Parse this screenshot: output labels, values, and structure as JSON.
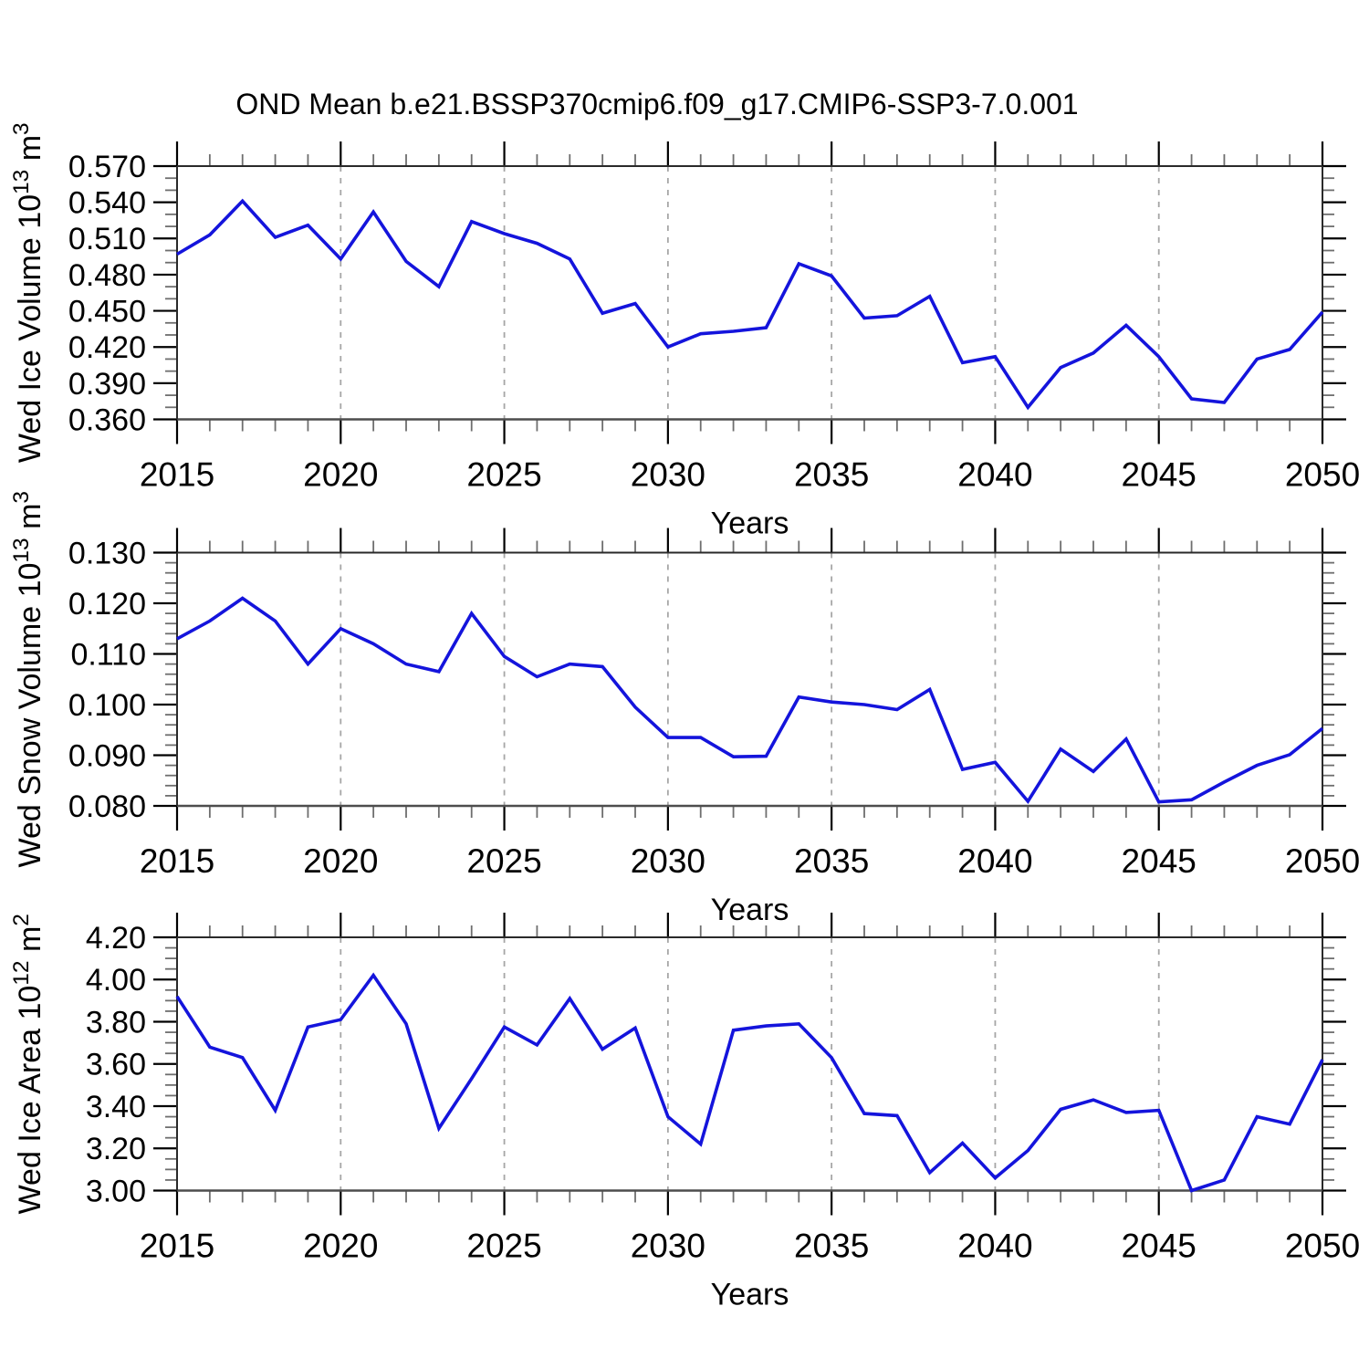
{
  "title": "OND Mean b.e21.BSSP370cmip6.f09_g17.CMIP6-SSP3-7.0.001",
  "colors": {
    "line": "#1414DC",
    "grid_dashed": "#A6A6A6",
    "axis": "#2A2A2A",
    "major_tick": "#000000",
    "minor_tick": "#6E6E6E",
    "text": "#000000",
    "background": "#FFFFFF"
  },
  "chart_data": [
    {
      "type": "line",
      "panel": 1,
      "x": [
        2015,
        2016,
        2017,
        2018,
        2019,
        2020,
        2021,
        2022,
        2023,
        2024,
        2025,
        2026,
        2027,
        2028,
        2029,
        2030,
        2031,
        2032,
        2033,
        2034,
        2035,
        2036,
        2037,
        2038,
        2039,
        2040,
        2041,
        2042,
        2043,
        2044,
        2045,
        2046,
        2047,
        2048,
        2049,
        2050
      ],
      "series": [
        {
          "name": "Wed Ice Volume",
          "values": [
            0.497,
            0.513,
            0.541,
            0.511,
            0.521,
            0.493,
            0.532,
            0.491,
            0.47,
            0.524,
            0.514,
            0.506,
            0.493,
            0.448,
            0.456,
            0.42,
            0.431,
            0.433,
            0.436,
            0.489,
            0.479,
            0.444,
            0.446,
            0.462,
            0.407,
            0.412,
            0.37,
            0.403,
            0.415,
            0.438,
            0.412,
            0.377,
            0.374,
            0.41,
            0.418,
            0.449
          ]
        }
      ],
      "ylabel": "Wed Ice Volume 10^13 m^3",
      "xlabel": "Years",
      "ylim": [
        0.36,
        0.57
      ],
      "ytick_major": 0.03,
      "ytick_minor": 0.01,
      "y_decimals": 3,
      "xlim": [
        2015,
        2050
      ],
      "xtick_major": 5,
      "xtick_minor": 1,
      "grid_vertical_dashed_at": [
        2020,
        2025,
        2030,
        2035,
        2040,
        2045
      ],
      "legend": "none"
    },
    {
      "type": "line",
      "panel": 2,
      "x": [
        2015,
        2016,
        2017,
        2018,
        2019,
        2020,
        2021,
        2022,
        2023,
        2024,
        2025,
        2026,
        2027,
        2028,
        2029,
        2030,
        2031,
        2032,
        2033,
        2034,
        2035,
        2036,
        2037,
        2038,
        2039,
        2040,
        2041,
        2042,
        2043,
        2044,
        2045,
        2046,
        2047,
        2048,
        2049,
        2050
      ],
      "series": [
        {
          "name": "Wed Snow Volume",
          "values": [
            0.113,
            0.1165,
            0.121,
            0.1165,
            0.108,
            0.115,
            0.112,
            0.108,
            0.1065,
            0.118,
            0.1095,
            0.1055,
            0.108,
            0.1075,
            0.0995,
            0.0935,
            0.0935,
            0.0897,
            0.0898,
            0.1015,
            0.1005,
            0.1,
            0.099,
            0.103,
            0.0872,
            0.0886,
            0.0809,
            0.0912,
            0.0868,
            0.0932,
            0.0808,
            0.0812,
            0.0847,
            0.088,
            0.0901,
            0.0953
          ]
        }
      ],
      "ylabel": "Wed Snow Volume 10^13 m^3",
      "xlabel": "Years",
      "ylim": [
        0.08,
        0.13
      ],
      "ytick_major": 0.01,
      "ytick_minor": 0.002,
      "y_decimals": 3,
      "xlim": [
        2015,
        2050
      ],
      "xtick_major": 5,
      "xtick_minor": 1,
      "grid_vertical_dashed_at": [
        2020,
        2025,
        2030,
        2035,
        2040,
        2045
      ],
      "legend": "none"
    },
    {
      "type": "line",
      "panel": 3,
      "x": [
        2015,
        2016,
        2017,
        2018,
        2019,
        2020,
        2021,
        2022,
        2023,
        2024,
        2025,
        2026,
        2027,
        2028,
        2029,
        2030,
        2031,
        2032,
        2033,
        2034,
        2035,
        2036,
        2037,
        2038,
        2039,
        2040,
        2041,
        2042,
        2043,
        2044,
        2045,
        2046,
        2047,
        2048,
        2049,
        2050
      ],
      "series": [
        {
          "name": "Wed Ice Area",
          "values": [
            3.92,
            3.68,
            3.63,
            3.38,
            3.775,
            3.81,
            4.02,
            3.79,
            3.295,
            3.53,
            3.775,
            3.69,
            3.91,
            3.67,
            3.77,
            3.35,
            3.22,
            3.76,
            3.78,
            3.79,
            3.63,
            3.365,
            3.355,
            3.085,
            3.225,
            3.06,
            3.19,
            3.385,
            3.43,
            3.37,
            3.38,
            3.0,
            3.05,
            3.35,
            3.315,
            3.62
          ]
        }
      ],
      "ylabel": "Wed Ice Area 10^12 m^2",
      "xlabel": "Years",
      "ylim": [
        3.0,
        4.2
      ],
      "ytick_major": 0.2,
      "ytick_minor": 0.05,
      "y_decimals": 2,
      "xlim": [
        2015,
        2050
      ],
      "xtick_major": 5,
      "xtick_minor": 1,
      "grid_vertical_dashed_at": [
        2020,
        2025,
        2030,
        2035,
        2040,
        2045
      ],
      "legend": "none"
    }
  ]
}
